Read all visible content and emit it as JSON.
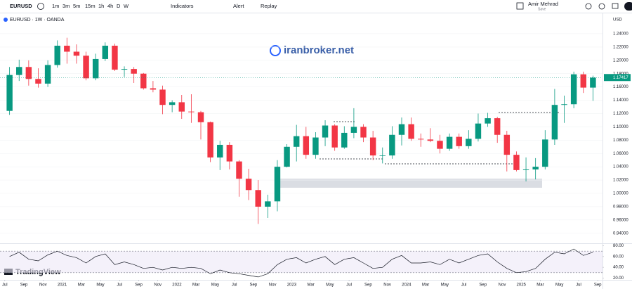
{
  "toolbar": {
    "symbol": "EURUSD",
    "intervals": [
      "1m",
      "3m",
      "5m",
      "15m",
      "1h",
      "4h",
      "D",
      "W"
    ],
    "indicators": "Indicators",
    "alert": "Alert",
    "replay": "Replay",
    "user": "Amir Mehrad",
    "save": "Save"
  },
  "chart_data": [
    {
      "type": "candlestick",
      "title": "EURUSD · 1W · OANDA",
      "watermark": "iranbroker.net",
      "brand": "TradingView",
      "currency": "USD",
      "last_price": {
        "value": 1.17417,
        "label": "1.17417"
      },
      "up_color": "#089981",
      "down_color": "#f23645",
      "xlim": [
        -0.5,
        62.5
      ],
      "xticks": [
        {
          "value": 0,
          "label": "Jul"
        },
        {
          "value": 2,
          "label": "Sep"
        },
        {
          "value": 4,
          "label": "Nov"
        },
        {
          "value": 6,
          "label": "2021"
        },
        {
          "value": 8,
          "label": "Mar"
        },
        {
          "value": 10,
          "label": "May"
        },
        {
          "value": 12,
          "label": "Jul"
        },
        {
          "value": 14,
          "label": "Sep"
        },
        {
          "value": 16,
          "label": "Nov"
        },
        {
          "value": 18,
          "label": "2022"
        },
        {
          "value": 20,
          "label": "Mar"
        },
        {
          "value": 22,
          "label": "May"
        },
        {
          "value": 24,
          "label": "Jul"
        },
        {
          "value": 26,
          "label": "Sep"
        },
        {
          "value": 28,
          "label": "Nov"
        },
        {
          "value": 30,
          "label": "2023"
        },
        {
          "value": 32,
          "label": "Mar"
        },
        {
          "value": 34,
          "label": "May"
        },
        {
          "value": 36,
          "label": "Jul"
        },
        {
          "value": 38,
          "label": "Sep"
        },
        {
          "value": 40,
          "label": "Nov"
        },
        {
          "value": 42,
          "label": "2024"
        },
        {
          "value": 44,
          "label": "Mar"
        },
        {
          "value": 46,
          "label": "May"
        },
        {
          "value": 48,
          "label": "Jul"
        },
        {
          "value": 50,
          "label": "Sep"
        },
        {
          "value": 52,
          "label": "Nov"
        },
        {
          "value": 54,
          "label": "2025"
        },
        {
          "value": 56,
          "label": "Mar"
        },
        {
          "value": 58,
          "label": "May"
        },
        {
          "value": 60,
          "label": "Jul"
        },
        {
          "value": 62,
          "label": "Sep"
        }
      ],
      "ylim": [
        0.926,
        1.259
      ],
      "yticks": [
        {
          "value": 0.94,
          "label": "0.94000"
        },
        {
          "value": 0.96,
          "label": "0.96000"
        },
        {
          "value": 0.98,
          "label": "0.98000"
        },
        {
          "value": 1,
          "label": "1.00000"
        },
        {
          "value": 1.02,
          "label": "1.02000"
        },
        {
          "value": 1.04,
          "label": "1.04000"
        },
        {
          "value": 1.06,
          "label": "1.06000"
        },
        {
          "value": 1.08,
          "label": "1.08000"
        },
        {
          "value": 1.1,
          "label": "1.10000"
        },
        {
          "value": 1.12,
          "label": "1.12000"
        },
        {
          "value": 1.14,
          "label": "1.14000"
        },
        {
          "value": 1.16,
          "label": "1.16000"
        },
        {
          "value": 1.18,
          "label": "1.18000"
        },
        {
          "value": 1.2,
          "label": "1.20000"
        },
        {
          "value": 1.22,
          "label": "1.22000"
        },
        {
          "value": 1.24,
          "label": "1.24000"
        }
      ],
      "open": [
        1.124,
        1.178,
        1.19,
        1.172,
        1.165,
        1.193,
        1.222,
        1.213,
        1.207,
        1.173,
        1.202,
        1.222,
        1.186,
        1.187,
        1.18,
        1.158,
        1.156,
        1.133,
        1.137,
        1.123,
        1.122,
        1.107,
        1.054,
        1.073,
        1.048,
        1.022,
        1.005,
        0.98,
        0.988,
        1.04,
        1.07,
        1.086,
        1.058,
        1.084,
        1.102,
        1.069,
        1.091,
        1.1,
        1.084,
        1.057,
        1.057,
        1.088,
        1.104,
        1.082,
        1.081,
        1.079,
        1.067,
        1.085,
        1.071,
        1.082,
        1.105,
        1.113,
        1.088,
        1.058,
        1.035,
        1.036,
        1.04,
        1.081,
        1.133,
        1.134,
        1.179,
        1.159
      ],
      "high": [
        1.19,
        1.201,
        1.2,
        1.188,
        1.2,
        1.23,
        1.234,
        1.224,
        1.213,
        1.21,
        1.227,
        1.225,
        1.191,
        1.19,
        1.181,
        1.169,
        1.162,
        1.14,
        1.148,
        1.149,
        1.124,
        1.108,
        1.079,
        1.077,
        1.05,
        1.037,
        1.02,
        0.998,
        1.05,
        1.074,
        1.103,
        1.1,
        1.092,
        1.11,
        1.104,
        1.101,
        1.128,
        1.104,
        1.094,
        1.069,
        1.101,
        1.114,
        1.114,
        1.09,
        1.098,
        1.088,
        1.09,
        1.09,
        1.095,
        1.12,
        1.121,
        1.115,
        1.094,
        1.063,
        1.054,
        1.053,
        1.095,
        1.157,
        1.147,
        1.183,
        1.183,
        1.177
      ],
      "low": [
        1.118,
        1.169,
        1.162,
        1.159,
        1.16,
        1.189,
        1.195,
        1.195,
        1.17,
        1.17,
        1.199,
        1.184,
        1.175,
        1.166,
        1.156,
        1.152,
        1.119,
        1.122,
        1.112,
        1.106,
        1.081,
        1.047,
        1.035,
        1.036,
        0.995,
        0.99,
        0.954,
        0.963,
        0.973,
        1.039,
        1.048,
        1.052,
        1.052,
        1.071,
        1.064,
        1.067,
        1.083,
        1.077,
        1.05,
        1.045,
        1.052,
        1.072,
        1.079,
        1.07,
        1.077,
        1.06,
        1.064,
        1.067,
        1.067,
        1.078,
        1.1,
        1.076,
        1.033,
        1.033,
        1.018,
        1.021,
        1.036,
        1.073,
        1.106,
        1.128,
        1.151,
        1.139
      ],
      "close": [
        1.178,
        1.19,
        1.172,
        1.165,
        1.193,
        1.222,
        1.213,
        1.207,
        1.173,
        1.202,
        1.222,
        1.186,
        1.187,
        1.18,
        1.158,
        1.156,
        1.133,
        1.137,
        1.123,
        1.122,
        1.107,
        1.054,
        1.073,
        1.048,
        1.022,
        1.005,
        0.98,
        0.988,
        1.04,
        1.07,
        1.086,
        1.058,
        1.084,
        1.102,
        1.069,
        1.091,
        1.1,
        1.084,
        1.057,
        1.057,
        1.088,
        1.104,
        1.082,
        1.081,
        1.079,
        1.067,
        1.085,
        1.071,
        1.082,
        1.105,
        1.113,
        1.088,
        1.058,
        1.035,
        1.036,
        1.04,
        1.081,
        1.133,
        1.134,
        1.179,
        1.159,
        1.174
      ]
    },
    {
      "type": "line",
      "color": "#131722",
      "band_color": "#ede7f6",
      "levels": [
        70,
        30
      ],
      "ylim": [
        18,
        82
      ],
      "yticks": [
        {
          "value": 20,
          "label": "20.00"
        },
        {
          "value": 40,
          "label": "40.00"
        },
        {
          "value": 60,
          "label": "60.00"
        },
        {
          "value": 80,
          "label": "80.00"
        }
      ],
      "values": [
        60,
        68,
        55,
        52,
        63,
        70,
        62,
        58,
        48,
        60,
        65,
        45,
        50,
        45,
        38,
        40,
        35,
        40,
        38,
        40,
        38,
        28,
        35,
        30,
        28,
        25,
        22,
        28,
        45,
        55,
        58,
        48,
        55,
        60,
        45,
        55,
        58,
        48,
        38,
        40,
        55,
        62,
        48,
        48,
        50,
        45,
        55,
        48,
        55,
        62,
        65,
        50,
        38,
        30,
        32,
        38,
        55,
        68,
        65,
        74,
        62,
        68
      ]
    }
  ]
}
